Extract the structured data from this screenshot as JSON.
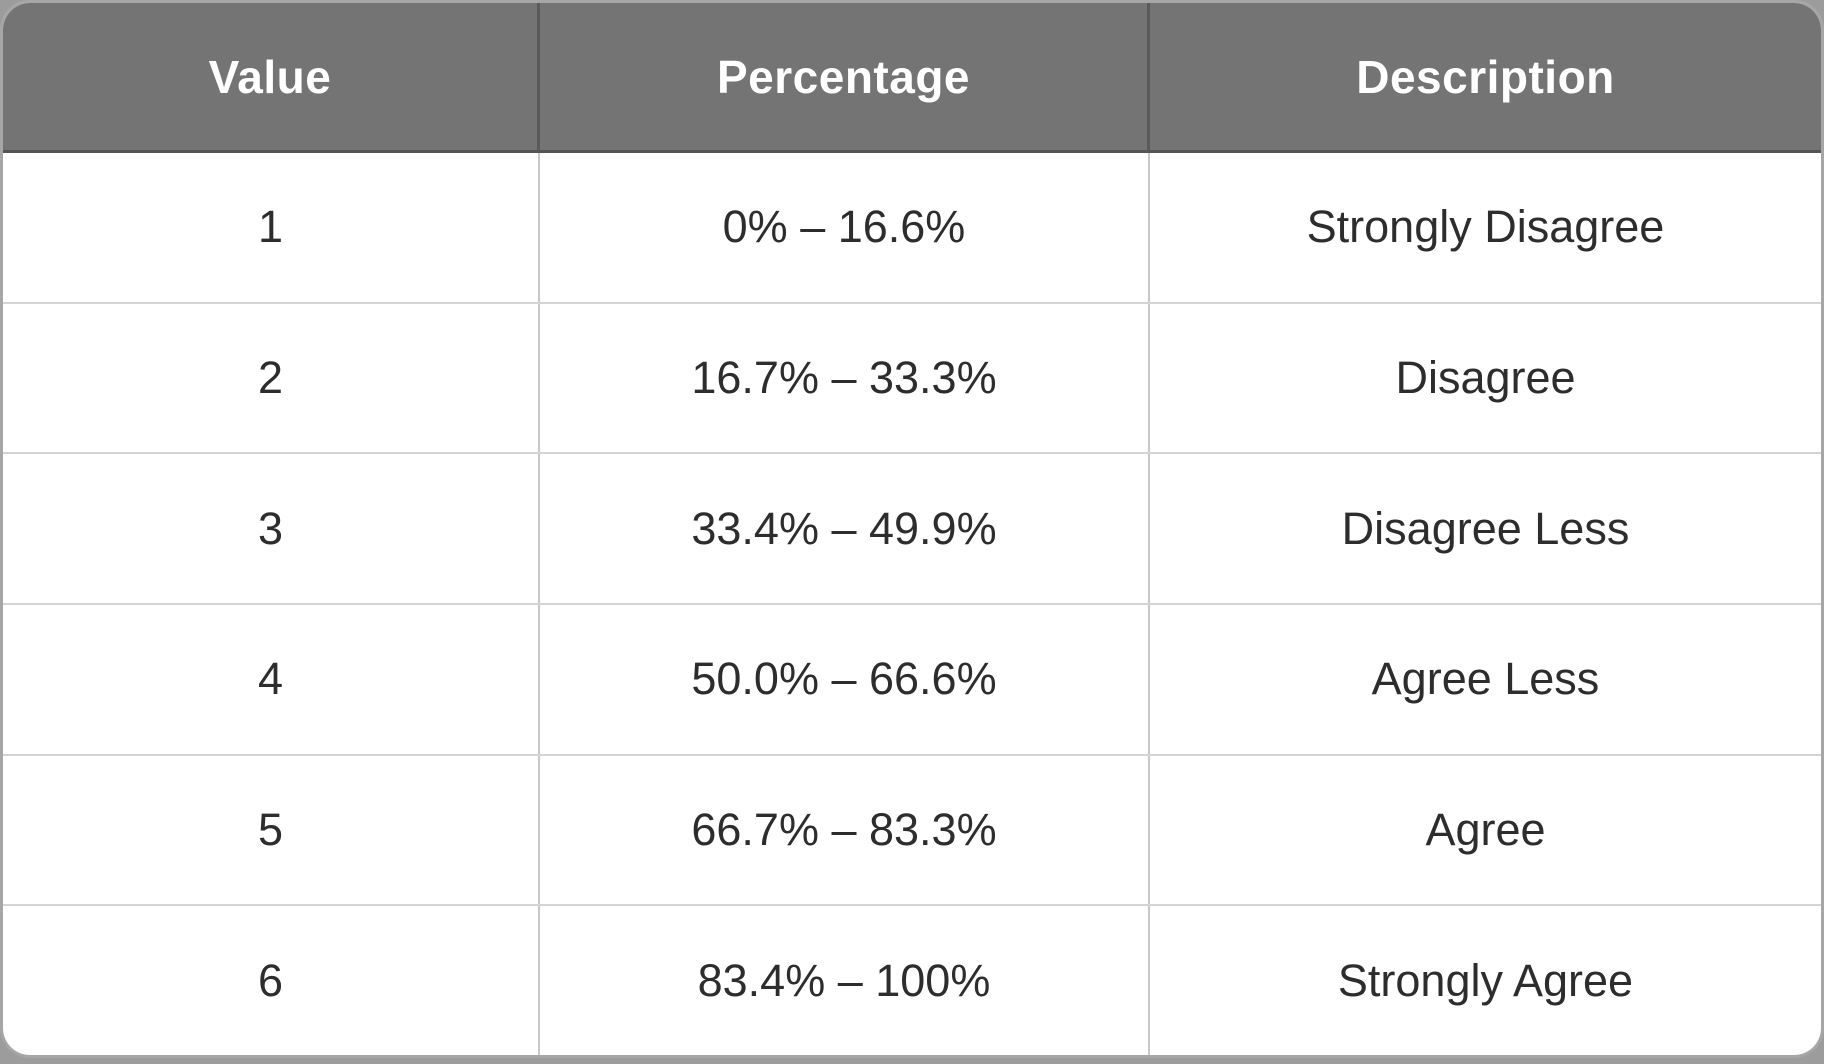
{
  "colors": {
    "header_background": "#747474",
    "header_text": "#ffffff",
    "cell_text": "#2d2d2d",
    "row_divider": "#d4d4d4",
    "column_divider_body": "#c9c9c9",
    "column_divider_header": "#5a5a5a",
    "outer_border": "rgba(0,0,0,0.35)",
    "body_background": "#ffffff"
  },
  "table": {
    "headers": [
      "Value",
      "Percentage",
      "Description"
    ],
    "rows": [
      {
        "value": "1",
        "percentage": "0% – 16.6%",
        "description": "Strongly Disagree"
      },
      {
        "value": "2",
        "percentage": "16.7% – 33.3%",
        "description": "Disagree"
      },
      {
        "value": "3",
        "percentage": "33.4% – 49.9%",
        "description": "Disagree Less"
      },
      {
        "value": "4",
        "percentage": "50.0% – 66.6%",
        "description": "Agree Less"
      },
      {
        "value": "5",
        "percentage": "66.7% – 83.3%",
        "description": "Agree"
      },
      {
        "value": "6",
        "percentage": "83.4% – 100%",
        "description": "Strongly Agree"
      }
    ]
  }
}
